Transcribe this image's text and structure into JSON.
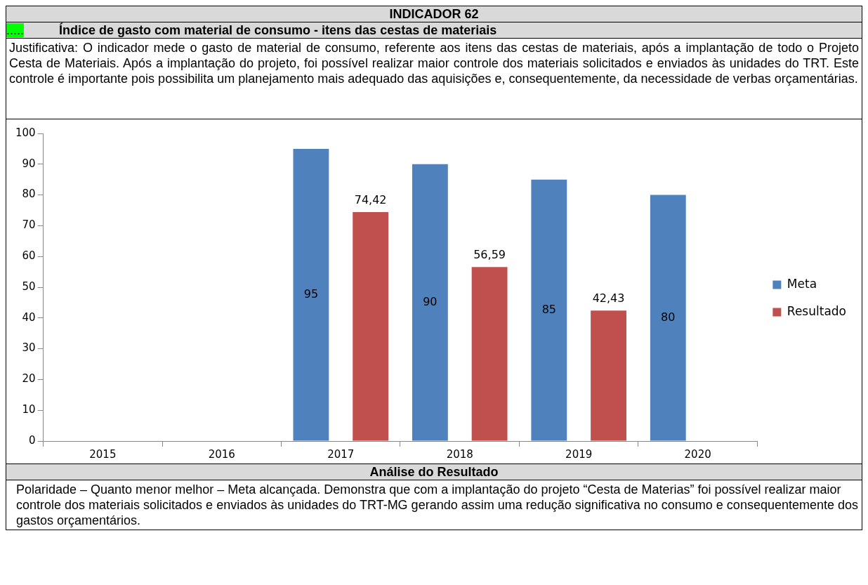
{
  "chart_data": {
    "type": "bar",
    "title": "INDICADOR 62",
    "subtitle": "Índice de gasto com material de consumo  - itens das cestas de materiais",
    "annotations": [
      ".....",
      "Justificativa: O indicador mede o gasto de material de consumo, referente aos itens das cestas de materiais, após a implantação de todo o Projeto Cesta de Materiais. Após a implantação do projeto, foi possível realizar maior controle dos materiais solicitados e enviados às unidades do TRT. Este controle é importante pois possibilita um planejamento mais adequado das aquisições e, consequentemente, da necessidade de verbas orçamentárias.",
      "Análise do Resultado",
      "Polaridade – Quanto menor melhor – Meta alcançada. Demonstra que com a implantação do projeto “Cesta de Materias” foi possível realizar maior controle dos materiais solicitados e enviados às unidades do TRT-MG gerando assim uma redução significativa no consumo e consequentemente dos gastos orçamentários."
    ],
    "categories": [
      "2015",
      "2016",
      "2017",
      "2018",
      "2019",
      "2020"
    ],
    "series": [
      {
        "name": "Meta",
        "color": "#4f81bd",
        "values": [
          null,
          null,
          95,
          90,
          85,
          80
        ],
        "value_labels": [
          null,
          null,
          "95",
          "90",
          "85",
          "80"
        ]
      },
      {
        "name": "Resultado",
        "color": "#c0504d",
        "values": [
          null,
          null,
          74.42,
          56.59,
          42.43,
          null
        ],
        "value_labels": [
          null,
          null,
          "74,42",
          "56,59",
          "42,43",
          null
        ]
      }
    ],
    "ylim": [
      0,
      100
    ],
    "yticks": [
      0,
      10,
      20,
      30,
      40,
      50,
      60,
      70,
      80,
      90,
      100
    ],
    "grid": false,
    "legend": "right"
  }
}
